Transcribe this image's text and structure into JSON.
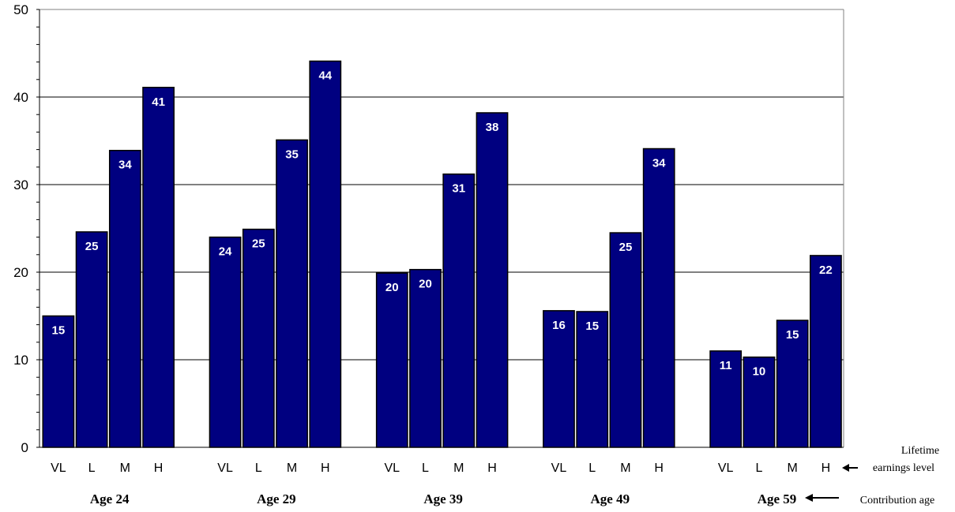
{
  "chart_data": {
    "type": "bar",
    "title": "",
    "xlabel": "",
    "ylabel": "",
    "ylim": [
      0,
      50
    ],
    "yticks": [
      0,
      10,
      20,
      30,
      40,
      50
    ],
    "grid": true,
    "legend": "none",
    "bar_color": "#000080",
    "subcategories": [
      "VL",
      "L",
      "M",
      "H"
    ],
    "groups": [
      {
        "label": "Age 24",
        "values": [
          15,
          24.6,
          33.9,
          41.1
        ],
        "data_labels": [
          "15",
          "25",
          "34",
          "41"
        ]
      },
      {
        "label": "Age 29",
        "values": [
          24,
          24.9,
          35.1,
          44.1
        ],
        "data_labels": [
          "24",
          "25",
          "35",
          "44"
        ]
      },
      {
        "label": "Age 39",
        "values": [
          19.9,
          20.3,
          31.2,
          38.2
        ],
        "data_labels": [
          "20",
          "20",
          "31",
          "38"
        ]
      },
      {
        "label": "Age 49",
        "values": [
          15.6,
          15.5,
          24.5,
          34.1
        ],
        "data_labels": [
          "16",
          "15",
          "25",
          "34"
        ]
      },
      {
        "label": "Age 59",
        "values": [
          11,
          10.3,
          14.5,
          21.9
        ],
        "data_labels": [
          "11",
          "10",
          "15",
          "22"
        ]
      }
    ],
    "annotations": {
      "level_line1": "Lifetime",
      "level_line2": "earnings level",
      "age": "Contribution age"
    }
  }
}
